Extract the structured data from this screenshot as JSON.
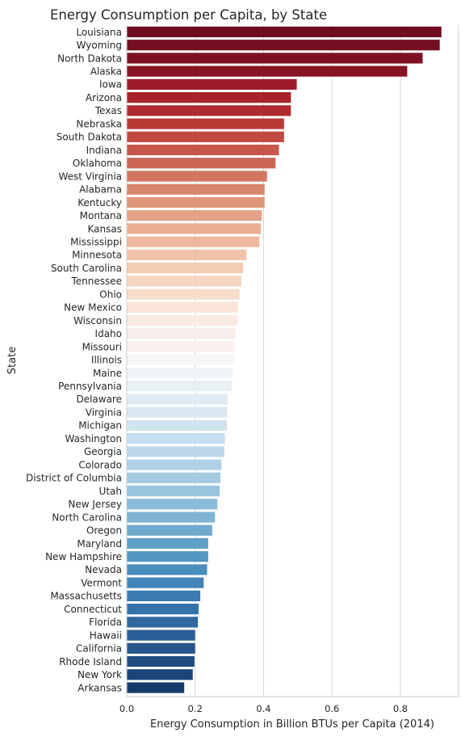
{
  "chart_data": {
    "type": "bar",
    "orientation": "horizontal",
    "title": "Energy Consumption per Capita, by State",
    "xlabel": "Energy Consumption in Billion BTUs per Capita (2014)",
    "ylabel": "State",
    "xlim": [
      0,
      0.97
    ],
    "xticks": [
      0.0,
      0.2,
      0.4,
      0.6,
      0.8
    ],
    "xtick_labels": [
      "0.0",
      "0.2",
      "0.4",
      "0.6",
      "0.8"
    ],
    "grid": "vertical",
    "colormap": "RdBu",
    "categories": [
      "Louisiana",
      "Wyoming",
      "North Dakota",
      "Alaska",
      "Iowa",
      "Arizona",
      "Texas",
      "Nebraska",
      "South Dakota",
      "Indiana",
      "Oklahoma",
      "West Virginia",
      "Alabama",
      "Kentucky",
      "Montana",
      "Kansas",
      "Mississippi",
      "Minnesota",
      "South Carolina",
      "Tennessee",
      "Ohio",
      "New Mexico",
      "Wisconsin",
      "Idaho",
      "Missouri",
      "Illinois",
      "Maine",
      "Pennsylvania",
      "Delaware",
      "Virginia",
      "Michigan",
      "Washington",
      "Georgia",
      "Colorado",
      "District of Columbia",
      "Utah",
      "New Jersey",
      "North Carolina",
      "Oregon",
      "Maryland",
      "New Hampshire",
      "Nevada",
      "Vermont",
      "Massachusetts",
      "Connecticut",
      "Florida",
      "Hawaii",
      "California",
      "Rhode Island",
      "New York",
      "Arkansas"
    ],
    "values": [
      0.92,
      0.915,
      0.865,
      0.82,
      0.497,
      0.48,
      0.48,
      0.46,
      0.46,
      0.445,
      0.435,
      0.41,
      0.403,
      0.403,
      0.395,
      0.392,
      0.388,
      0.35,
      0.34,
      0.335,
      0.33,
      0.325,
      0.325,
      0.318,
      0.316,
      0.314,
      0.31,
      0.307,
      0.295,
      0.293,
      0.293,
      0.287,
      0.285,
      0.277,
      0.274,
      0.272,
      0.265,
      0.258,
      0.25,
      0.238,
      0.238,
      0.235,
      0.225,
      0.215,
      0.21,
      0.208,
      0.2,
      0.2,
      0.198,
      0.193,
      0.168
    ],
    "colors": [
      "#6f0d1f",
      "#760f21",
      "#7d1123",
      "#861425",
      "#9e1c2a",
      "#a82229",
      "#af2a2d",
      "#b83a37",
      "#c04a41",
      "#c7574b",
      "#cc6555",
      "#d37661",
      "#d8866e",
      "#df957a",
      "#e4a286",
      "#eaae93",
      "#edb89e",
      "#f0c2a9",
      "#f4ccb5",
      "#f6d5c0",
      "#f8ddcc",
      "#fae4d8",
      "#f9eae4",
      "#f8edeb",
      "#f8f1f0",
      "#f7f5f6",
      "#f1f4f7",
      "#e9f0f4",
      "#e0ebf2",
      "#d9e8f1",
      "#d1e3ef",
      "#c6def0",
      "#bcd7ea",
      "#b0d1e6",
      "#a5cbe2",
      "#98c4de",
      "#8bbcd8",
      "#7fb4d4",
      "#70a9cd",
      "#609fc8",
      "#5397c4",
      "#4a8dbf",
      "#4384ba",
      "#3b7bb2",
      "#3672aa",
      "#31689f",
      "#2b5e96",
      "#26558c",
      "#204c82",
      "#1c4478",
      "#163b6c"
    ]
  }
}
